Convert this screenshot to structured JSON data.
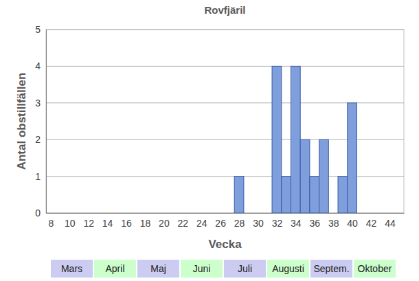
{
  "chart_data": {
    "type": "bar",
    "title": "Rovfjäril",
    "x_label": "Vecka",
    "y_label": "Antal obstillfällen",
    "x": [
      28,
      32,
      33,
      34,
      35,
      36,
      37,
      39,
      40
    ],
    "values": [
      1,
      4,
      1,
      4,
      2,
      1,
      2,
      1,
      3
    ],
    "color": "#7f9fdc",
    "xlim": [
      7.5,
      45.5
    ],
    "xticks": [
      8,
      10,
      12,
      14,
      16,
      18,
      20,
      22,
      24,
      26,
      28,
      30,
      32,
      34,
      36,
      38,
      40,
      42,
      44
    ],
    "ylim": [
      0,
      5
    ],
    "yticks": [
      0,
      1,
      2,
      3,
      4,
      5
    ],
    "grid": true,
    "annotations": [
      "Mars",
      "April",
      "Maj",
      "Juni",
      "Juli",
      "Augusti",
      "Septem.",
      "Oktober"
    ]
  }
}
